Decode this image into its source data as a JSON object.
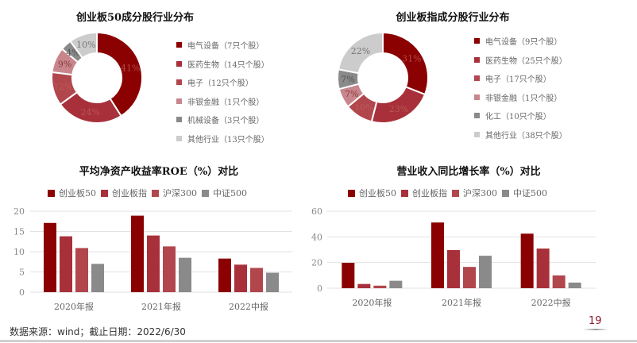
{
  "colors": {
    "c1": "#8b0000",
    "c2": "#a8303a",
    "c3": "#b2464d",
    "c4": "#c8868c",
    "c5": "#8a8a8a",
    "c6": "#cccccc"
  },
  "chart_data": [
    {
      "type": "pie",
      "title": "创业板50成分股行业分布",
      "donut": true,
      "labels": [
        "电气设备（7只个股）",
        "医药生物（14只个股）",
        "电子（12只个股）",
        "非银金融（1只个股）",
        "机械设备（3只个股）",
        "其他行业（13只个股）"
      ],
      "values": [
        41,
        24,
        12,
        9,
        4,
        10
      ],
      "data_labels": [
        "41%",
        "24%",
        "12%",
        "9%",
        "4%",
        "10%"
      ],
      "legend_position": "right"
    },
    {
      "type": "pie",
      "title": "创业板指成分股行业分布",
      "donut": true,
      "labels": [
        "电气设备（9只个股）",
        "医药生物（25只个股）",
        "电子（17只个股）",
        "非银金融（1只个股）",
        "化工（10只个股）",
        "其他行业（38只个股）"
      ],
      "values": [
        31,
        23,
        10,
        7,
        7,
        22
      ],
      "data_labels": [
        "31%",
        "23%",
        "10%",
        "7%",
        "7%",
        "22%"
      ],
      "legend_position": "right"
    },
    {
      "type": "bar",
      "title": "平均净资产收益率ROE（%）对比",
      "categories": [
        "2020年报",
        "2021年报",
        "2022中报"
      ],
      "series": [
        {
          "name": "创业板50",
          "values": [
            17.1,
            18.9,
            8.3
          ]
        },
        {
          "name": "创业板指",
          "values": [
            13.8,
            14.0,
            6.8
          ]
        },
        {
          "name": "沪深300",
          "values": [
            10.9,
            11.3,
            6.0
          ]
        },
        {
          "name": "中证500",
          "values": [
            7.0,
            8.5,
            4.8
          ]
        }
      ],
      "yticks": [
        0,
        5,
        10,
        15,
        20
      ],
      "ylim": [
        0,
        20
      ],
      "grid": true,
      "legend_position": "top",
      "xlabel": "",
      "ylabel": ""
    },
    {
      "type": "bar",
      "title": "营业收入同比增长率（%）对比",
      "categories": [
        "2020年报",
        "2021年报",
        "2022中报"
      ],
      "series": [
        {
          "name": "创业板50",
          "values": [
            19.8,
            51.2,
            42.5
          ]
        },
        {
          "name": "创业板指",
          "values": [
            3.3,
            29.7,
            30.9
          ]
        },
        {
          "name": "沪深300",
          "values": [
            2.0,
            16.6,
            10.0
          ]
        },
        {
          "name": "中证500",
          "values": [
            5.8,
            25.3,
            4.4
          ]
        }
      ],
      "yticks": [
        0,
        20,
        40,
        60
      ],
      "ylim": [
        0,
        60
      ],
      "grid": true,
      "legend_position": "top",
      "xlabel": "",
      "ylabel": ""
    }
  ],
  "pie1": {
    "title": "创业板50成分股行业分布",
    "legend": [
      "电气设备（7只个股）",
      "医药生物（14只个股）",
      "电子（12只个股）",
      "非银金融（1只个股）",
      "机械设备（3只个股）",
      "其他行业（13只个股）"
    ]
  },
  "pie2": {
    "title": "创业板指成分股行业分布",
    "legend": [
      "电气设备（9只个股）",
      "医药生物（25只个股）",
      "电子（17只个股）",
      "非银金融（1只个股）",
      "化工（10只个股）",
      "其他行业（38只个股）"
    ]
  },
  "bar1": {
    "title": "平均净资产收益率ROE（%）对比",
    "legend": [
      "创业板50",
      "创业板指",
      "沪深300",
      "中证500"
    ]
  },
  "bar2": {
    "title": "营业收入同比增长率（%）对比",
    "legend": [
      "创业板50",
      "创业板指",
      "沪深300",
      "中证500"
    ]
  },
  "footer": {
    "source": "数据来源：wind；截止日期：2022/6/30",
    "page": "19"
  }
}
